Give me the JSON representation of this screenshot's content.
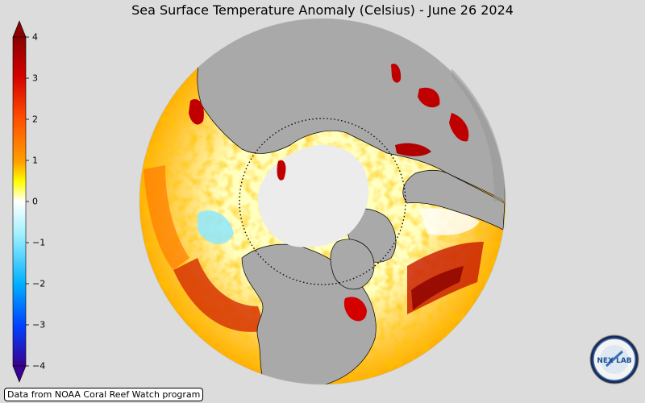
{
  "title": "Sea Surface Temperature Anomaly (Celsius) - June 26 2024",
  "colorbar": {
    "min": -4,
    "max": 4,
    "ticks": [
      "4",
      "3",
      "2",
      "1",
      "0",
      "−1",
      "−2",
      "−3",
      "−4"
    ],
    "colors": [
      "#8b0000",
      "#d40000",
      "#ff5000",
      "#ffa000",
      "#ffff00",
      "#ffffff",
      "#a0f0ff",
      "#00b0ff",
      "#0040ff",
      "#3a0090"
    ]
  },
  "map": {
    "projection": "orthographic",
    "center": "North Pole",
    "land_color": "#a9a9a9",
    "ice_color": "#ececec"
  },
  "credit": "Data from NOAA Coral Reef Watch program",
  "logo": {
    "text": "NEX LAB",
    "icon": "nexlab-logo-icon"
  }
}
